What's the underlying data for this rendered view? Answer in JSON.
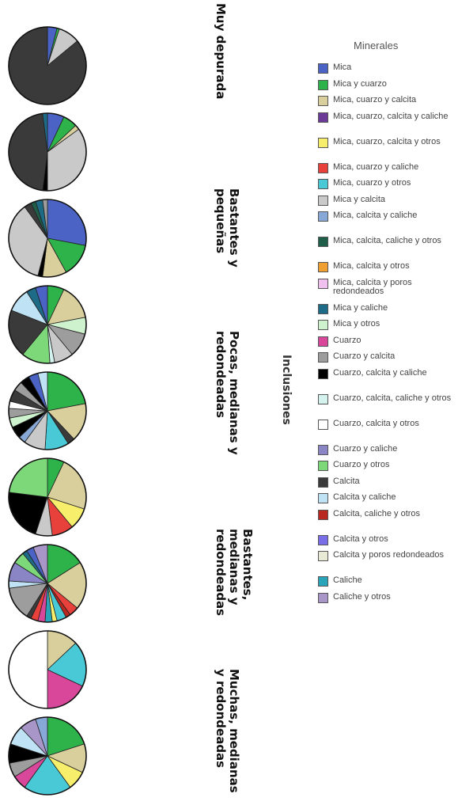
{
  "chart_data": {
    "type": "pie",
    "legend_title": "Minerales",
    "axis_title": "Inclusiones",
    "groups": [
      "Muy depurada",
      "Bastantes y\npequeñas",
      "Pocas, medianas y\nredondeadas",
      "Bastantes,\nmedianas y\nredondeadas",
      "Muchas, medianas\ny redondeadas"
    ],
    "legend": [
      {
        "name": "Mica",
        "color": "#4a63c4"
      },
      {
        "name": "Mica y cuarzo",
        "color": "#2db34a"
      },
      {
        "name": "Mica, cuarzo y calcita",
        "color": "#d8cf9c"
      },
      {
        "name": "Mica, cuarzo, calcita y caliche",
        "color": "#6a3a96"
      },
      {
        "name": "Mica, cuarzo, calcita y otros",
        "color": "#f7ef6b"
      },
      {
        "name": "Mica, cuarzo y caliche",
        "color": "#e8413b"
      },
      {
        "name": "Mica, cuarzo y otros",
        "color": "#49c9d6"
      },
      {
        "name": "Mica y calcita",
        "color": "#c9c9c9"
      },
      {
        "name": "Mica, calcita y caliche",
        "color": "#88a8d8"
      },
      {
        "name": "Mica, calcita, caliche y otros",
        "color": "#1f5e48"
      },
      {
        "name": "Mica, calcita y otros",
        "color": "#f0a030"
      },
      {
        "name": "Mica, calcita y poros redondeados",
        "color": "#f0c0ee"
      },
      {
        "name": "Mica y caliche",
        "color": "#1d6b86"
      },
      {
        "name": "Mica y otros",
        "color": "#cdf2cd"
      },
      {
        "name": "Cuarzo",
        "color": "#d8479a"
      },
      {
        "name": "Cuarzo y calcita",
        "color": "#9d9d9d"
      },
      {
        "name": "Cuarzo, calcita y caliche",
        "color": "#000000"
      },
      {
        "name": "Cuarzo, calcita, caliche y otros",
        "color": "#d4f2ee"
      },
      {
        "name": "Cuarzo, calcita y otros",
        "color": "#ffffff"
      },
      {
        "name": "Cuarzo y caliche",
        "color": "#8a86c6"
      },
      {
        "name": "Cuarzo y otros",
        "color": "#7dd87a"
      },
      {
        "name": "Calcita",
        "color": "#3a3a3a"
      },
      {
        "name": "Calcita y caliche",
        "color": "#bfe2f4"
      },
      {
        "name": "Calcita, caliche y otros",
        "color": "#b82820"
      },
      {
        "name": "Calcita y otros",
        "color": "#7a6ee8"
      },
      {
        "name": "Calcita y poros redondeados",
        "color": "#e8ead6"
      },
      {
        "name": "Caliche",
        "color": "#2aa4b8"
      },
      {
        "name": "Caliche y otros",
        "color": "#a896c8"
      }
    ],
    "pies": [
      [
        {
          "name": "Mica",
          "value": 4
        },
        {
          "name": "Mica y cuarzo",
          "value": 1
        },
        {
          "name": "Mica y calcita",
          "value": 9
        },
        {
          "name": "Calcita",
          "value": 86
        }
      ],
      [
        {
          "name": "Mica",
          "value": 7
        },
        {
          "name": "Mica y cuarzo",
          "value": 6
        },
        {
          "name": "Mica, cuarzo y calcita",
          "value": 2
        },
        {
          "name": "Mica y calcita",
          "value": 35
        },
        {
          "name": "Cuarzo, calcita y caliche",
          "value": 2
        },
        {
          "name": "Calcita",
          "value": 46
        },
        {
          "name": "Mica y caliche",
          "value": 2
        }
      ],
      [
        {
          "name": "Mica",
          "value": 28
        },
        {
          "name": "Mica y cuarzo",
          "value": 14
        },
        {
          "name": "Mica, cuarzo y calcita",
          "value": 10
        },
        {
          "name": "Cuarzo, calcita y caliche",
          "value": 2
        },
        {
          "name": "Mica y calcita",
          "value": 36
        },
        {
          "name": "Calcita",
          "value": 3
        },
        {
          "name": "Mica, calcita, caliche y otros",
          "value": 2
        },
        {
          "name": "Mica y caliche",
          "value": 3
        },
        {
          "name": "Cuarzo y calcita",
          "value": 2
        }
      ],
      [
        {
          "name": "Mica y cuarzo",
          "value": 7
        },
        {
          "name": "Mica, cuarzo y calcita",
          "value": 15
        },
        {
          "name": "Mica y otros",
          "value": 7
        },
        {
          "name": "Cuarzo y calcita",
          "value": 10
        },
        {
          "name": "Mica y calcita",
          "value": 8
        },
        {
          "name": "Cuarzo, calcita, caliche y otros",
          "value": 2
        },
        {
          "name": "Cuarzo y otros",
          "value": 12
        },
        {
          "name": "Calcita",
          "value": 20
        },
        {
          "name": "Calcita y caliche",
          "value": 10
        },
        {
          "name": "Mica y caliche",
          "value": 4
        },
        {
          "name": "Mica",
          "value": 5
        }
      ],
      [
        {
          "name": "Mica y cuarzo",
          "value": 22
        },
        {
          "name": "Mica, cuarzo y calcita",
          "value": 16
        },
        {
          "name": "Calcita",
          "value": 3
        },
        {
          "name": "Mica, cuarzo y otros",
          "value": 10
        },
        {
          "name": "Mica y calcita",
          "value": 9
        },
        {
          "name": "Mica, calcita y caliche",
          "value": 3
        },
        {
          "name": "Cuarzo, calcita y caliche",
          "value": 5
        },
        {
          "name": "Mica y otros",
          "value": 4
        },
        {
          "name": "Cuarzo y calcita",
          "value": 4
        },
        {
          "name": "Cuarzo, calcita y otros",
          "value": 3
        },
        {
          "name": "Calcita",
          "value": 5
        },
        {
          "name": "Cuarzo y calcita",
          "value": 4
        },
        {
          "name": "Cuarzo, calcita y caliche",
          "value": 4
        },
        {
          "name": "Mica",
          "value": 4
        },
        {
          "name": "Calcita y caliche",
          "value": 4
        }
      ],
      [
        {
          "name": "Mica y cuarzo",
          "value": 7
        },
        {
          "name": "Mica, cuarzo y calcita",
          "value": 23
        },
        {
          "name": "Mica, cuarzo, calcita y otros",
          "value": 9
        },
        {
          "name": "Mica, cuarzo y caliche",
          "value": 9
        },
        {
          "name": "Mica y calcita",
          "value": 7
        },
        {
          "name": "Cuarzo, calcita y caliche",
          "value": 22
        },
        {
          "name": "Cuarzo y otros",
          "value": 23
        }
      ],
      [
        {
          "name": "Mica y cuarzo",
          "value": 16
        },
        {
          "name": "Mica, cuarzo y calcita",
          "value": 20
        },
        {
          "name": "Mica, cuarzo y caliche",
          "value": 4
        },
        {
          "name": "Calcita, caliche y otros",
          "value": 2
        },
        {
          "name": "Mica, cuarzo y otros",
          "value": 4
        },
        {
          "name": "Mica, cuarzo, calcita y otros",
          "value": 2
        },
        {
          "name": "Caliche",
          "value": 3
        },
        {
          "name": "Cuarzo",
          "value": 3
        },
        {
          "name": "Mica, cuarzo y caliche",
          "value": 3
        },
        {
          "name": "Calcita",
          "value": 2
        },
        {
          "name": "Cuarzo y calcita",
          "value": 14
        },
        {
          "name": "Calcita y caliche",
          "value": 3
        },
        {
          "name": "Cuarzo y caliche",
          "value": 8
        },
        {
          "name": "Cuarzo y otros",
          "value": 5
        },
        {
          "name": "Mica y caliche",
          "value": 2
        },
        {
          "name": "Mica",
          "value": 3
        },
        {
          "name": "Caliche y otros",
          "value": 6
        }
      ],
      [
        {
          "name": "Mica, cuarzo y calcita",
          "value": 13
        },
        {
          "name": "Mica, cuarzo y otros",
          "value": 19
        },
        {
          "name": "Cuarzo",
          "value": 18
        },
        {
          "name": "Cuarzo, calcita y otros",
          "value": 50
        }
      ],
      [
        {
          "name": "Mica y cuarzo",
          "value": 20
        },
        {
          "name": "Mica, cuarzo y calcita",
          "value": 12
        },
        {
          "name": "Mica, cuarzo, calcita y otros",
          "value": 8
        },
        {
          "name": "Mica, cuarzo y otros",
          "value": 20
        },
        {
          "name": "Cuarzo",
          "value": 6
        },
        {
          "name": "Cuarzo y calcita",
          "value": 6
        },
        {
          "name": "Cuarzo, calcita y caliche",
          "value": 8
        },
        {
          "name": "Calcita y caliche",
          "value": 8
        },
        {
          "name": "Caliche y otros",
          "value": 7
        },
        {
          "name": "Mica, calcita y caliche",
          "value": 5
        }
      ]
    ]
  }
}
